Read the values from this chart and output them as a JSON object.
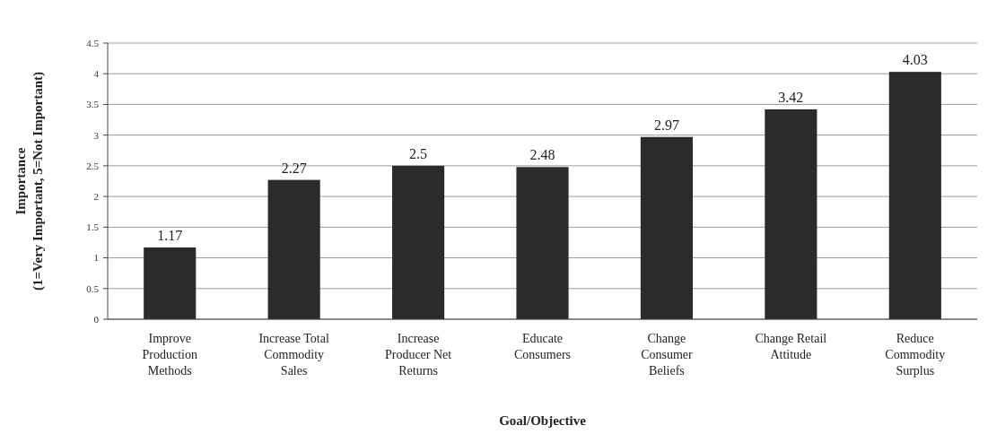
{
  "chart_data": {
    "type": "bar",
    "xlabel": "Goal/Objective",
    "ylabel": "Importance\n(1=Very Important, 5=Not Important)",
    "categories": [
      "Improve Production Methods",
      "Increase Total Commodity Sales",
      "Increase Producer Net Returns",
      "Educate Consumers",
      "Change Consumer Beliefs",
      "Change Retail Attitude",
      "Reduce Commodity Surplus"
    ],
    "values": [
      1.17,
      2.27,
      2.5,
      2.48,
      2.97,
      3.42,
      4.03
    ],
    "color": "#2b2b2b",
    "ylim": [
      0,
      4.5
    ],
    "yticks": [
      0,
      0.5,
      1,
      1.5,
      2,
      2.5,
      3,
      3.5,
      4,
      4.5
    ],
    "grid": "y",
    "data_labels": true
  }
}
